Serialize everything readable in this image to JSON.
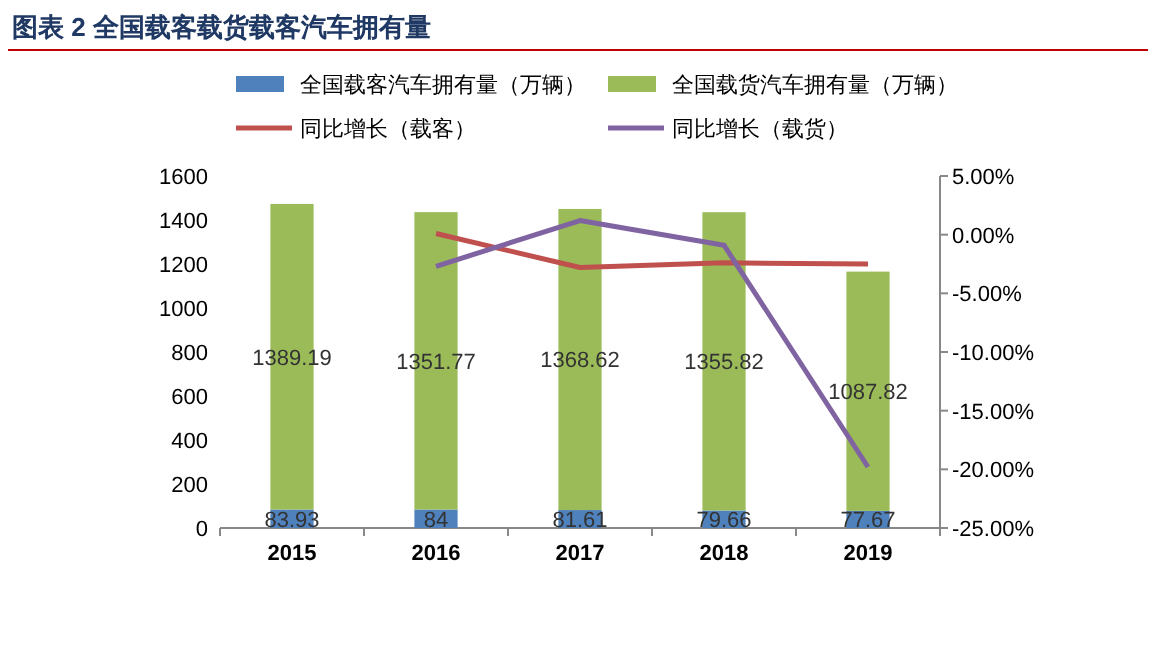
{
  "chart_data": {
    "type": "bar",
    "title": "图表 2 全国载客载货载客汽车拥有量",
    "categories": [
      "2015",
      "2016",
      "2017",
      "2018",
      "2019"
    ],
    "stacked": true,
    "legend": "top",
    "series": [
      {
        "name": "全国载客汽车拥有量（万辆）",
        "color": "#4f81bd",
        "values": [
          83.93,
          84,
          81.61,
          79.66,
          77.67
        ],
        "value_labels": [
          "83.93",
          "84",
          "81.61",
          "79.66",
          "77.67"
        ]
      },
      {
        "name": "全国载货汽车拥有量（万辆）",
        "color": "#9bbb59",
        "values": [
          1389.19,
          1351.77,
          1368.62,
          1355.82,
          1087.82
        ],
        "value_labels": [
          "1389.19",
          "1351.77",
          "1368.62",
          "1355.82",
          "1087.82"
        ]
      },
      {
        "name": "同比增长（载客）",
        "type": "line",
        "axis": "y2",
        "color": "#c0504d",
        "values": [
          null,
          0.1,
          -2.8,
          -2.4,
          -2.5
        ]
      },
      {
        "name": "同比增长（载货）",
        "type": "line",
        "axis": "y2",
        "color": "#8064a2",
        "values": [
          null,
          -2.7,
          1.2,
          -0.9,
          -19.8
        ]
      }
    ],
    "ylim": [
      0,
      1600
    ],
    "yticks": [
      0,
      200,
      400,
      600,
      800,
      1000,
      1200,
      1400,
      1600
    ],
    "y2lim": [
      -25,
      5
    ],
    "y2ticks": [
      {
        "value": -25,
        "label": "-25.00%"
      },
      {
        "value": -20,
        "label": "-20.00%"
      },
      {
        "value": -15,
        "label": "-15.00%"
      },
      {
        "value": -10,
        "label": "-10.00%"
      },
      {
        "value": -5,
        "label": "-5.00%"
      },
      {
        "value": 0,
        "label": "0.00%"
      },
      {
        "value": 5,
        "label": "5.00%"
      }
    ]
  }
}
